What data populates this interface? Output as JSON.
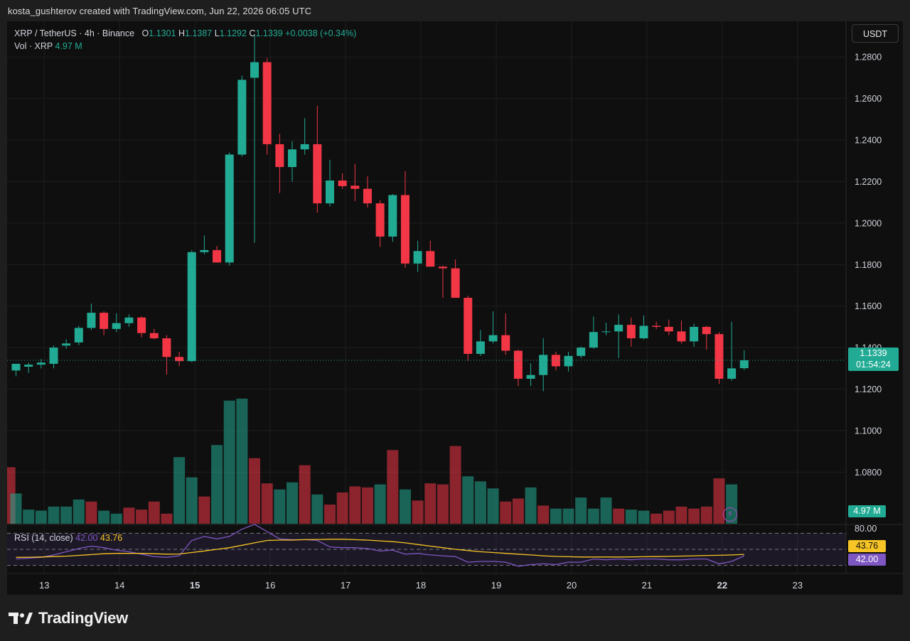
{
  "header": {
    "text": "kosta_gushterov created with TradingView.com, Jun 22, 2026 06:05 UTC"
  },
  "legend": {
    "symbol": "XRP / TetherUS · 4h · Binance",
    "o_label": "O",
    "o_value": "1.1301",
    "h_label": "H",
    "h_value": "1.1387",
    "l_label": "L",
    "l_value": "1.1292",
    "c_label": "C",
    "c_value": "1.1339",
    "change": "+0.0038 (+0.34%)",
    "vol_label": "Vol · XRP",
    "vol_value": "4.97 M"
  },
  "rsi_legend": {
    "label": "RSI (14, close)",
    "value": "42.00",
    "ma_value": "43.76"
  },
  "price_scale": {
    "currency_button": "USDT",
    "last_price": "1.1339",
    "countdown": "01:54:24",
    "volume_tag": "4.97 M"
  },
  "rsi_scale": {
    "top_label": "80.00",
    "ma_tag": "43.76",
    "value_tag": "42.00"
  },
  "brand": {
    "name": "TradingView"
  },
  "colors": {
    "up": "#22ab94",
    "down": "#f23645",
    "rsi": "#7e57c2",
    "rsi_ma": "#f7c525",
    "background": "#0f0f0f"
  },
  "chart_data": {
    "type": "candlestick",
    "symbol": "XRP / TetherUS",
    "interval": "4h",
    "y_ticks": [
      "1.2800",
      "1.2600",
      "1.2400",
      "1.2200",
      "1.2000",
      "1.1800",
      "1.1600",
      "1.1400",
      "1.1200",
      "1.1000",
      "1.0800"
    ],
    "ylim": [
      1.062,
      1.2835
    ],
    "x_ticks": [
      {
        "label": "13",
        "index": 2.25,
        "bold": false
      },
      {
        "label": "14",
        "index": 8.25,
        "bold": false
      },
      {
        "label": "15",
        "index": 14.25,
        "bold": true
      },
      {
        "label": "16",
        "index": 20.25,
        "bold": false
      },
      {
        "label": "17",
        "index": 26.25,
        "bold": false
      },
      {
        "label": "18",
        "index": 32.25,
        "bold": false
      },
      {
        "label": "19",
        "index": 38.25,
        "bold": false
      },
      {
        "label": "20",
        "index": 44.25,
        "bold": false
      },
      {
        "label": "21",
        "index": 50.25,
        "bold": false
      },
      {
        "label": "22",
        "index": 56.25,
        "bold": true
      },
      {
        "label": "23",
        "index": 62.25,
        "bold": false
      }
    ],
    "candles": [
      {
        "o": 1.129,
        "h": 1.1315,
        "l": 1.1262,
        "c": 1.1322
      },
      {
        "o": 1.1308,
        "h": 1.1328,
        "l": 1.1278,
        "c": 1.1318
      },
      {
        "o": 1.1318,
        "h": 1.1345,
        "l": 1.13,
        "c": 1.1328
      },
      {
        "o": 1.1322,
        "h": 1.141,
        "l": 1.13,
        "c": 1.14
      },
      {
        "o": 1.141,
        "h": 1.144,
        "l": 1.1395,
        "c": 1.142
      },
      {
        "o": 1.1425,
        "h": 1.1505,
        "l": 1.1412,
        "c": 1.1495
      },
      {
        "o": 1.1495,
        "h": 1.1612,
        "l": 1.1485,
        "c": 1.1568
      },
      {
        "o": 1.1568,
        "h": 1.1575,
        "l": 1.146,
        "c": 1.149
      },
      {
        "o": 1.149,
        "h": 1.1565,
        "l": 1.1475,
        "c": 1.1518
      },
      {
        "o": 1.1518,
        "h": 1.156,
        "l": 1.15,
        "c": 1.1545
      },
      {
        "o": 1.1545,
        "h": 1.155,
        "l": 1.145,
        "c": 1.147
      },
      {
        "o": 1.147,
        "h": 1.149,
        "l": 1.144,
        "c": 1.1445
      },
      {
        "o": 1.1445,
        "h": 1.146,
        "l": 1.127,
        "c": 1.1355
      },
      {
        "o": 1.1355,
        "h": 1.138,
        "l": 1.131,
        "c": 1.1335
      },
      {
        "o": 1.1335,
        "h": 1.187,
        "l": 1.133,
        "c": 1.186
      },
      {
        "o": 1.186,
        "h": 1.194,
        "l": 1.185,
        "c": 1.187
      },
      {
        "o": 1.187,
        "h": 1.189,
        "l": 1.181,
        "c": 1.181
      },
      {
        "o": 1.181,
        "h": 1.234,
        "l": 1.1795,
        "c": 1.233
      },
      {
        "o": 1.233,
        "h": 1.271,
        "l": 1.232,
        "c": 1.269
      },
      {
        "o": 1.27,
        "h": 1.291,
        "l": 1.1905,
        "c": 1.2775
      },
      {
        "o": 1.2775,
        "h": 1.2795,
        "l": 1.233,
        "c": 1.238
      },
      {
        "o": 1.238,
        "h": 1.243,
        "l": 1.2145,
        "c": 1.227
      },
      {
        "o": 1.227,
        "h": 1.2395,
        "l": 1.22,
        "c": 1.2355
      },
      {
        "o": 1.2355,
        "h": 1.2505,
        "l": 1.233,
        "c": 1.238
      },
      {
        "o": 1.238,
        "h": 1.2565,
        "l": 1.205,
        "c": 1.2095
      },
      {
        "o": 1.2095,
        "h": 1.2305,
        "l": 1.208,
        "c": 1.2205
      },
      {
        "o": 1.2205,
        "h": 1.224,
        "l": 1.2165,
        "c": 1.2178
      },
      {
        "o": 1.218,
        "h": 1.2285,
        "l": 1.2105,
        "c": 1.2165
      },
      {
        "o": 1.2165,
        "h": 1.2225,
        "l": 1.2075,
        "c": 1.2095
      },
      {
        "o": 1.2095,
        "h": 1.211,
        "l": 1.1885,
        "c": 1.1935
      },
      {
        "o": 1.1935,
        "h": 1.214,
        "l": 1.191,
        "c": 1.2135
      },
      {
        "o": 1.2135,
        "h": 1.225,
        "l": 1.1785,
        "c": 1.1805
      },
      {
        "o": 1.1805,
        "h": 1.1915,
        "l": 1.1765,
        "c": 1.1865
      },
      {
        "o": 1.1865,
        "h": 1.1915,
        "l": 1.1805,
        "c": 1.179
      },
      {
        "o": 1.179,
        "h": 1.1795,
        "l": 1.164,
        "c": 1.1782
      },
      {
        "o": 1.1782,
        "h": 1.1825,
        "l": 1.164,
        "c": 1.164
      },
      {
        "o": 1.164,
        "h": 1.165,
        "l": 1.1335,
        "c": 1.137
      },
      {
        "o": 1.137,
        "h": 1.1485,
        "l": 1.136,
        "c": 1.143
      },
      {
        "o": 1.143,
        "h": 1.1575,
        "l": 1.142,
        "c": 1.146
      },
      {
        "o": 1.146,
        "h": 1.1565,
        "l": 1.1365,
        "c": 1.1385
      },
      {
        "o": 1.1385,
        "h": 1.139,
        "l": 1.1215,
        "c": 1.125
      },
      {
        "o": 1.125,
        "h": 1.1325,
        "l": 1.1215,
        "c": 1.1268
      },
      {
        "o": 1.1268,
        "h": 1.1445,
        "l": 1.119,
        "c": 1.1365
      },
      {
        "o": 1.1365,
        "h": 1.138,
        "l": 1.129,
        "c": 1.131
      },
      {
        "o": 1.131,
        "h": 1.138,
        "l": 1.1285,
        "c": 1.136
      },
      {
        "o": 1.136,
        "h": 1.1405,
        "l": 1.135,
        "c": 1.14
      },
      {
        "o": 1.14,
        "h": 1.155,
        "l": 1.1395,
        "c": 1.1475
      },
      {
        "o": 1.1475,
        "h": 1.152,
        "l": 1.146,
        "c": 1.1478
      },
      {
        "o": 1.1478,
        "h": 1.156,
        "l": 1.135,
        "c": 1.151
      },
      {
        "o": 1.151,
        "h": 1.1545,
        "l": 1.1405,
        "c": 1.1445
      },
      {
        "o": 1.1445,
        "h": 1.1555,
        "l": 1.144,
        "c": 1.1505
      },
      {
        "o": 1.1505,
        "h": 1.1525,
        "l": 1.149,
        "c": 1.15
      },
      {
        "o": 1.15,
        "h": 1.1535,
        "l": 1.146,
        "c": 1.1478
      },
      {
        "o": 1.1478,
        "h": 1.153,
        "l": 1.142,
        "c": 1.143
      },
      {
        "o": 1.143,
        "h": 1.1515,
        "l": 1.1405,
        "c": 1.15
      },
      {
        "o": 1.15,
        "h": 1.1505,
        "l": 1.139,
        "c": 1.1465
      },
      {
        "o": 1.1465,
        "h": 1.1475,
        "l": 1.1225,
        "c": 1.125
      },
      {
        "o": 1.125,
        "h": 1.1525,
        "l": 1.124,
        "c": 1.13
      },
      {
        "o": 1.1301,
        "h": 1.1387,
        "l": 1.1292,
        "c": 1.1339
      }
    ],
    "volume_up_color": "#22ab94",
    "volume_down_color": "#f23645",
    "volume": [
      [
        -0.5,
        56,
        false
      ],
      [
        0,
        30,
        true
      ],
      [
        1,
        14,
        true
      ],
      [
        2,
        13,
        true
      ],
      [
        3,
        17,
        true
      ],
      [
        4,
        17,
        true
      ],
      [
        5,
        24,
        true
      ],
      [
        6,
        22,
        false
      ],
      [
        7,
        13,
        true
      ],
      [
        8,
        10,
        true
      ],
      [
        9,
        16,
        false
      ],
      [
        10,
        14,
        false
      ],
      [
        11,
        22,
        false
      ],
      [
        12,
        10,
        false
      ],
      [
        13,
        66,
        true
      ],
      [
        14,
        46,
        true
      ],
      [
        15,
        27,
        false
      ],
      [
        16,
        78,
        true
      ],
      [
        17,
        122,
        true
      ],
      [
        18,
        124,
        true
      ],
      [
        19,
        65,
        false
      ],
      [
        20,
        40,
        false
      ],
      [
        21,
        34,
        true
      ],
      [
        22,
        41,
        true
      ],
      [
        23,
        58,
        false
      ],
      [
        24,
        29,
        true
      ],
      [
        25,
        19,
        false
      ],
      [
        26,
        31,
        false
      ],
      [
        27,
        37,
        false
      ],
      [
        28,
        36,
        false
      ],
      [
        29,
        39,
        true
      ],
      [
        30,
        73,
        false
      ],
      [
        31,
        34,
        true
      ],
      [
        32,
        23,
        false
      ],
      [
        33,
        40,
        false
      ],
      [
        34,
        39,
        false
      ],
      [
        35,
        77,
        false
      ],
      [
        36,
        47,
        true
      ],
      [
        37,
        42,
        true
      ],
      [
        38,
        35,
        true
      ],
      [
        39,
        22,
        false
      ],
      [
        40,
        25,
        false
      ],
      [
        41,
        36,
        true
      ],
      [
        42,
        18,
        false
      ],
      [
        43,
        15,
        true
      ],
      [
        44,
        15,
        true
      ],
      [
        45,
        26,
        true
      ],
      [
        46,
        15,
        true
      ],
      [
        47,
        26,
        true
      ],
      [
        48,
        15,
        false
      ],
      [
        49,
        14,
        true
      ],
      [
        50,
        13,
        true
      ],
      [
        51,
        10,
        false
      ],
      [
        52,
        13,
        false
      ],
      [
        53,
        17,
        false
      ],
      [
        54,
        15,
        false
      ],
      [
        55,
        17,
        false
      ],
      [
        56,
        45,
        false
      ],
      [
        57,
        39,
        true
      ]
    ],
    "rsi": {
      "ylim": [
        20,
        80
      ],
      "bands": [
        70,
        50,
        30
      ],
      "values": [
        38,
        39,
        40,
        43,
        47,
        51,
        54,
        52,
        49,
        47,
        44,
        41,
        40,
        42,
        61,
        66,
        63,
        66,
        75,
        81,
        72,
        63,
        62,
        62,
        61,
        53,
        52,
        52,
        51,
        48,
        49,
        44,
        45,
        43,
        42,
        41,
        34,
        35,
        35,
        34,
        29,
        31,
        32,
        31,
        34,
        34,
        38,
        37,
        38,
        37,
        38,
        38,
        37,
        37,
        38,
        38,
        32,
        35,
        42
      ],
      "ma_values": [
        40,
        40.2,
        40.5,
        41,
        41.5,
        42.5,
        43.5,
        44.5,
        45,
        45,
        45,
        44.5,
        44,
        44.2,
        46,
        48,
        50,
        52,
        55,
        58,
        61,
        61.5,
        61.5,
        62,
        62.3,
        62.5,
        62.5,
        62,
        61.5,
        60.5,
        59.5,
        58,
        56,
        54,
        52,
        50,
        48.5,
        47,
        46,
        45,
        44,
        43,
        42,
        41.2,
        40.8,
        40.5,
        40.5,
        40.5,
        40.5,
        40.6,
        40.8,
        41,
        41.3,
        41.6,
        42,
        42.4,
        42.6,
        43,
        43.76
      ]
    }
  }
}
